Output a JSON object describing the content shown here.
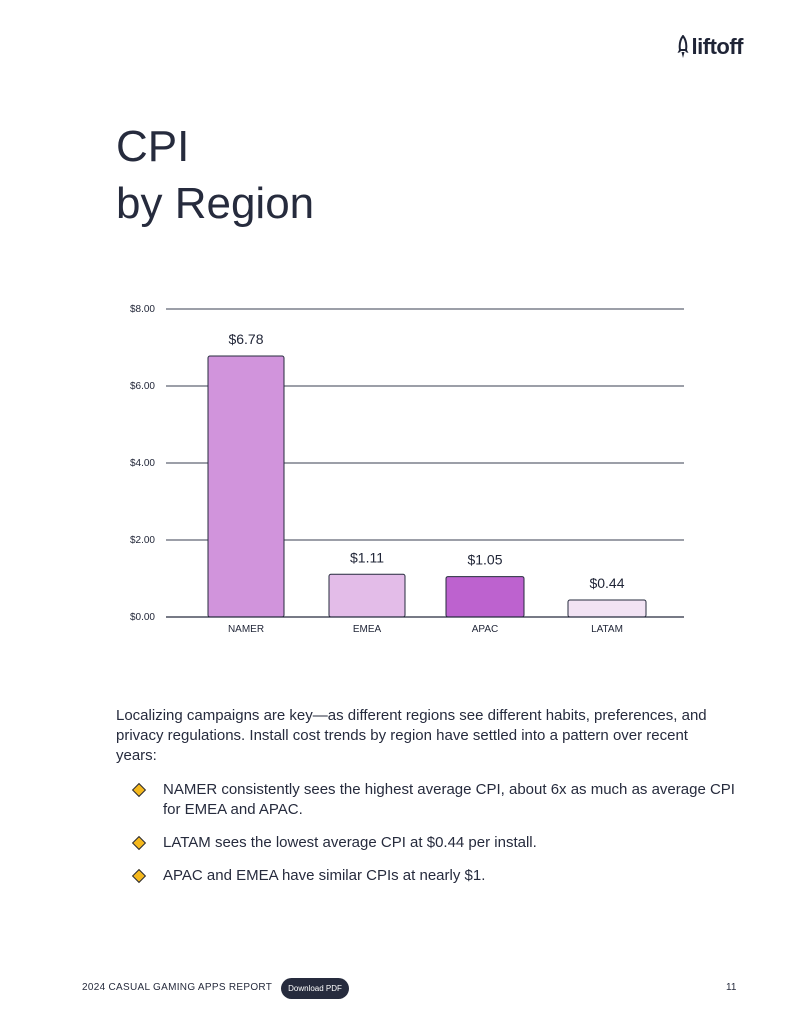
{
  "brand": {
    "logo_text": "liftoff",
    "logo_icon": "rocket-icon"
  },
  "page_title": {
    "line1": "CPI",
    "line2": "by Region"
  },
  "chart_data": {
    "type": "bar",
    "title": "",
    "xlabel": "",
    "ylabel": "",
    "categories": [
      "NAMER",
      "EMEA",
      "APAC",
      "LATAM"
    ],
    "values": [
      6.78,
      1.11,
      1.05,
      0.44
    ],
    "value_labels": [
      "$6.78",
      "$1.11",
      "$1.05",
      "$0.44"
    ],
    "bar_colors": [
      "#d194dc",
      "#e3bce8",
      "#bd62cf",
      "#f2e3f4"
    ],
    "ylim": [
      0,
      8
    ],
    "yticks": [
      0,
      2,
      4,
      6,
      8
    ],
    "ytick_labels": [
      "$0.00",
      "$2.00",
      "$4.00",
      "$6.00",
      "$8.00"
    ],
    "grid": true
  },
  "body": {
    "intro": "Localizing campaigns are key—as different regions see different habits, preferences, and privacy regulations. Install cost trends by region have settled into a pattern over recent years:",
    "bullets": [
      "NAMER consistently sees the highest average CPI, about 6x as much as average CPI for EMEA and APAC.",
      "LATAM sees the lowest average CPI at $0.44 per install.",
      "APAC and EMEA have similar CPIs at nearly $1."
    ]
  },
  "footer": {
    "report_label": "2024 CASUAL GAMING APPS REPORT",
    "download_label": "Download PDF",
    "page_number": "11"
  }
}
